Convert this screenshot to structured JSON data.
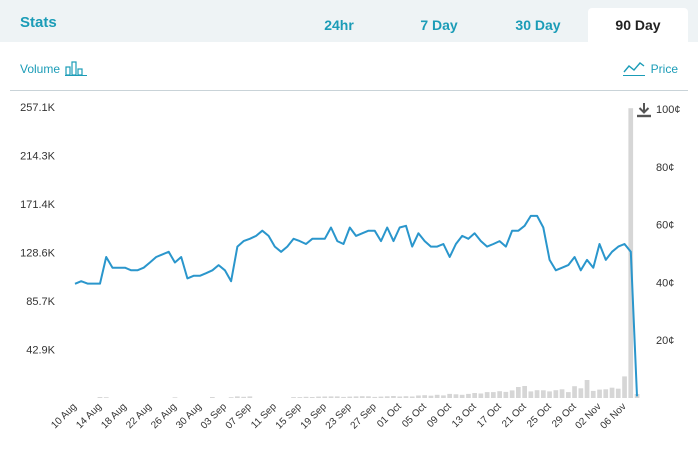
{
  "header": {
    "title": "Stats",
    "tabs": [
      {
        "label": "24hr",
        "active": false
      },
      {
        "label": "7 Day",
        "active": false
      },
      {
        "label": "30 Day",
        "active": false
      },
      {
        "label": "90 Day",
        "active": true
      }
    ]
  },
  "toggles": {
    "volume_label": "Volume",
    "price_label": "Price",
    "volume_icon": "bar-chart-icon",
    "price_icon": "line-chart-icon",
    "download_icon": "download-icon"
  },
  "colors": {
    "accent": "#1b9cb7",
    "line": "#2a96cc",
    "volume_bar": "#d6d6d6"
  },
  "chart_data": {
    "type": "line",
    "x": [
      "10 Aug",
      "11 Aug",
      "12 Aug",
      "13 Aug",
      "14 Aug",
      "15 Aug",
      "16 Aug",
      "17 Aug",
      "18 Aug",
      "19 Aug",
      "20 Aug",
      "21 Aug",
      "22 Aug",
      "23 Aug",
      "24 Aug",
      "25 Aug",
      "26 Aug",
      "27 Aug",
      "28 Aug",
      "29 Aug",
      "30 Aug",
      "31 Aug",
      "01 Sep",
      "02 Sep",
      "03 Sep",
      "04 Sep",
      "05 Sep",
      "06 Sep",
      "07 Sep",
      "08 Sep",
      "09 Sep",
      "10 Sep",
      "11 Sep",
      "12 Sep",
      "13 Sep",
      "14 Sep",
      "15 Sep",
      "16 Sep",
      "17 Sep",
      "18 Sep",
      "19 Sep",
      "20 Sep",
      "21 Sep",
      "22 Sep",
      "23 Sep",
      "24 Sep",
      "25 Sep",
      "26 Sep",
      "27 Sep",
      "28 Sep",
      "29 Sep",
      "30 Sep",
      "01 Oct",
      "02 Oct",
      "03 Oct",
      "04 Oct",
      "05 Oct",
      "06 Oct",
      "07 Oct",
      "08 Oct",
      "09 Oct",
      "10 Oct",
      "11 Oct",
      "12 Oct",
      "13 Oct",
      "14 Oct",
      "15 Oct",
      "16 Oct",
      "17 Oct",
      "18 Oct",
      "19 Oct",
      "20 Oct",
      "21 Oct",
      "22 Oct",
      "23 Oct",
      "24 Oct",
      "25 Oct",
      "26 Oct",
      "27 Oct",
      "28 Oct",
      "29 Oct",
      "30 Oct",
      "31 Oct",
      "01 Nov",
      "02 Nov",
      "03 Nov",
      "04 Nov",
      "05 Nov",
      "06 Nov",
      "07 Nov",
      "08 Nov"
    ],
    "x_tick_labels": [
      "10 Aug",
      "14 Aug",
      "18 Aug",
      "22 Aug",
      "26 Aug",
      "30 Aug",
      "03 Sep",
      "07 Sep",
      "11 Sep",
      "15 Sep",
      "19 Sep",
      "23 Sep",
      "27 Sep",
      "01 Oct",
      "05 Oct",
      "09 Oct",
      "13 Oct",
      "17 Oct",
      "21 Oct",
      "25 Oct",
      "29 Oct",
      "02 Nov",
      "06 Nov"
    ],
    "series": [
      {
        "axis": "right",
        "values": [
          39.5,
          40.4,
          39.6,
          39.6,
          39.6,
          48.8,
          45.1,
          45.1,
          45.1,
          44.2,
          44.2,
          45.1,
          46.9,
          48.8,
          49.7,
          50.6,
          46.9,
          48.8,
          41.4,
          42.3,
          42.3,
          43.2,
          44.2,
          46.0,
          44.2,
          40.4,
          52.4,
          54.3,
          55.1,
          56.1,
          57.9,
          56.1,
          52.4,
          50.6,
          52.4,
          55.1,
          54.3,
          53.3,
          55.1,
          55.1,
          55.1,
          59.0,
          54.3,
          53.3,
          59.0,
          56.1,
          57.0,
          57.9,
          57.9,
          54.3,
          59.0,
          54.3,
          59.0,
          59.6,
          52.4,
          57.0,
          54.3,
          52.4,
          52.4,
          53.3,
          48.8,
          53.3,
          56.1,
          55.1,
          57.0,
          54.3,
          52.4,
          53.3,
          54.3,
          52.4,
          57.9,
          57.9,
          59.6,
          63.0,
          63.0,
          59.0,
          47.8,
          44.2,
          45.1,
          46.0,
          48.8,
          44.2,
          47.8,
          45.1,
          53.3,
          47.8,
          50.6,
          52.4,
          53.3,
          50.6,
          0.6
        ]
      },
      {
        "axis": "left",
        "type": "bar",
        "values": [
          0,
          0,
          0,
          0,
          900,
          700,
          0,
          0,
          0,
          0,
          0,
          0,
          0,
          0,
          0,
          0,
          600,
          0,
          0,
          0,
          0,
          0,
          900,
          0,
          0,
          700,
          1400,
          1100,
          1400,
          0,
          0,
          0,
          0,
          0,
          0,
          800,
          800,
          1100,
          900,
          1200,
          1300,
          1400,
          1400,
          1000,
          1200,
          1400,
          1600,
          1500,
          1000,
          1200,
          1500,
          1800,
          1300,
          1600,
          1300,
          2200,
          2500,
          2000,
          2800,
          2300,
          3600,
          3300,
          2800,
          3600,
          4400,
          4000,
          5200,
          5200,
          6000,
          5400,
          6700,
          9700,
          10600,
          5800,
          6900,
          6800,
          5800,
          6900,
          7700,
          5200,
          10400,
          8600,
          15900,
          6300,
          7400,
          7700,
          9100,
          8200,
          19100,
          256000,
          3500
        ]
      }
    ],
    "ylim_left": [
      0,
      257100
    ],
    "yticks_left": [
      "42.9K",
      "85.7K",
      "128.6K",
      "171.4K",
      "214.3K",
      "257.1K"
    ],
    "ytick_values_left": [
      42900,
      85700,
      128600,
      171400,
      214300,
      257100
    ],
    "ylim_right": [
      0,
      100
    ],
    "yticks_right": [
      "20¢",
      "40¢",
      "60¢",
      "80¢",
      "100¢"
    ],
    "ytick_values_right": [
      20,
      40,
      60,
      80,
      100
    ],
    "grid": false,
    "legend": "none"
  }
}
